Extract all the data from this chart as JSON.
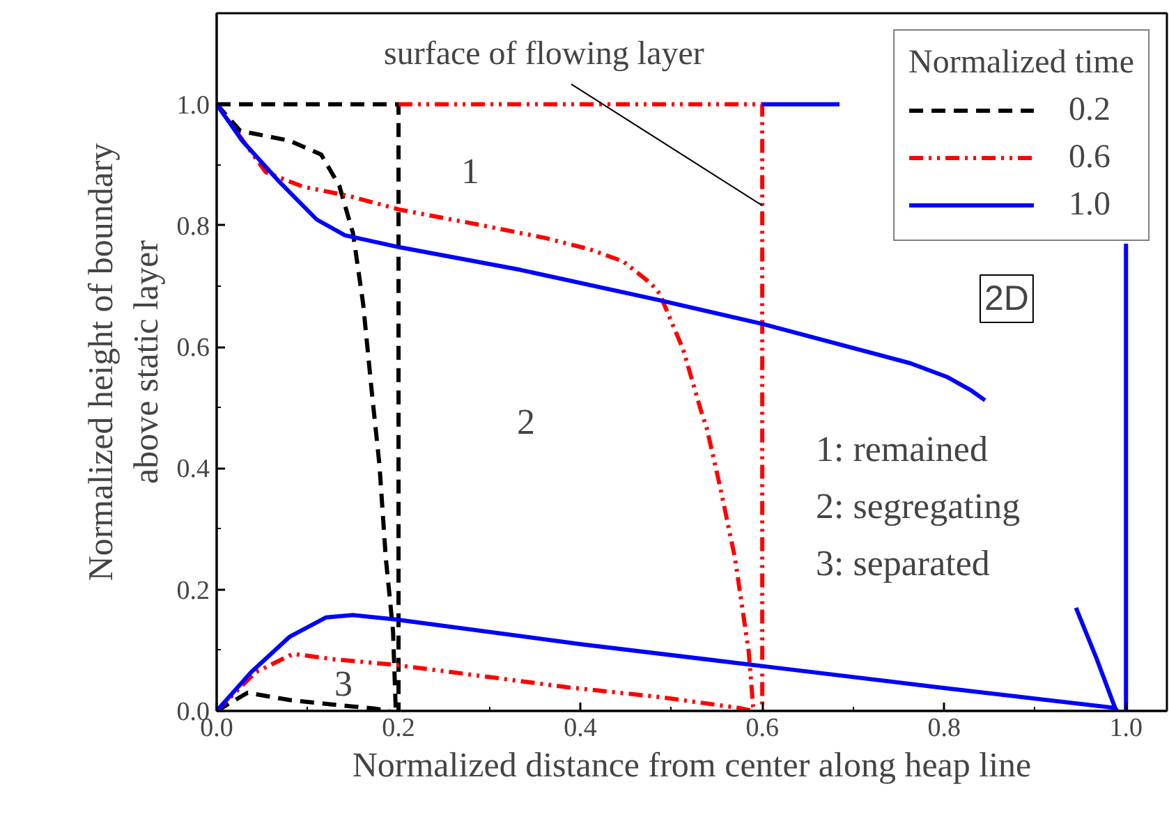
{
  "chart_data": {
    "type": "line",
    "xlabel": "Normalized distance from center along heap line",
    "ylabel": "Normalized height of boundary\nabove static layer",
    "legend_title": "Normalized time",
    "legend": "top right",
    "grid": false,
    "xlim": [
      0,
      1.045
    ],
    "ylim": [
      0,
      1.15
    ],
    "xticks": [
      {
        "value": 0,
        "label": "0.0"
      },
      0.2,
      0.4,
      0.6,
      0.8,
      {
        "value": 1,
        "label": "1.0"
      }
    ],
    "yticks": [
      {
        "value": 0,
        "label": "0.0"
      },
      0.2,
      0.4,
      0.6,
      0.8,
      {
        "value": 1,
        "label": "1.0"
      }
    ],
    "series": [
      {
        "name": "0.2",
        "color": "#000000",
        "line_style": "dashed",
        "x": [
          0,
          0.2,
          0.2
        ],
        "values": [
          1,
          1,
          0
        ]
      },
      {
        "color": "#000000",
        "line_style": "dashed",
        "x": [
          0,
          0.026,
          0.08,
          0.115,
          0.135,
          0.15,
          0.161,
          0.171,
          0.179,
          0.186,
          0.191,
          0.194,
          0.197
        ],
        "values": [
          1,
          0.956,
          0.94,
          0.917,
          0.865,
          0.787,
          0.672,
          0.52,
          0.406,
          0.252,
          0.177,
          0.13,
          0
        ]
      },
      {
        "color": "#000000",
        "line_style": "dashed",
        "x": [
          0,
          0.034,
          0.08,
          0.125,
          0.173,
          0.19
        ],
        "values": [
          0,
          0.03,
          0.018,
          0.011,
          0.004,
          0
        ]
      },
      {
        "name": "0.6",
        "color": "#ff0000",
        "line_style": "dotted",
        "x": [
          0.2,
          0.6,
          0.6
        ],
        "values": [
          1,
          1,
          0
        ]
      },
      {
        "color": "#ff0000",
        "line_style": "dotted",
        "x": [
          0,
          0.054,
          0.095,
          0.145,
          0.202,
          0.283,
          0.36,
          0.41,
          0.447,
          0.478,
          0.487,
          0.513,
          0.533,
          0.539,
          0.554,
          0.57,
          0.585,
          0.59,
          0.592
        ],
        "values": [
          1,
          0.888,
          0.864,
          0.849,
          0.826,
          0.803,
          0.78,
          0.761,
          0.741,
          0.704,
          0.688,
          0.596,
          0.493,
          0.466,
          0.367,
          0.252,
          0.099,
          0.007,
          0
        ]
      },
      {
        "color": "#ff0000",
        "line_style": "dotted",
        "x": [
          0,
          0.043,
          0.084,
          0.13,
          0.196,
          0.294,
          0.386,
          0.487,
          0.574,
          0.59
        ],
        "values": [
          0,
          0.064,
          0.094,
          0.085,
          0.076,
          0.057,
          0.039,
          0.023,
          0.005,
          0
        ]
      },
      {
        "name": "1.0",
        "color": "#0000ff",
        "line_style": "solid",
        "x": [
          0.6,
          0.685
        ],
        "values": [
          1,
          1
        ]
      },
      {
        "color": "#0000ff",
        "line_style": "solid",
        "x": [
          1,
          1
        ],
        "values": [
          0.77,
          0
        ]
      },
      {
        "color": "#0000ff",
        "line_style": "solid",
        "x": [
          0,
          0.028,
          0.069,
          0.11,
          0.141,
          0.202,
          0.334,
          0.487,
          0.6,
          0.763,
          0.804,
          0.83,
          0.845
        ],
        "values": [
          1,
          0.94,
          0.872,
          0.81,
          0.784,
          0.764,
          0.727,
          0.677,
          0.638,
          0.573,
          0.55,
          0.528,
          0.512
        ]
      },
      {
        "color": "#0000ff",
        "line_style": "solid",
        "x": [
          0.945,
          0.968,
          0.988,
          0.99
        ],
        "values": [
          0.17,
          0.085,
          0.005,
          0
        ]
      },
      {
        "color": "#0000ff",
        "line_style": "solid",
        "x": [
          0,
          0.038,
          0.08,
          0.12,
          0.15,
          0.196,
          0.401,
          0.605,
          0.793,
          0.988,
          0.99
        ],
        "values": [
          0,
          0.064,
          0.122,
          0.154,
          0.158,
          0.151,
          0.11,
          0.073,
          0.039,
          0.005,
          0
        ]
      }
    ],
    "annotations": [
      {
        "text": "surface of flowing layer",
        "x": 0.6,
        "y": 0.833
      },
      "1",
      "2",
      "3",
      "1: remained",
      "2: segregating",
      "3: separated",
      "2D"
    ]
  }
}
